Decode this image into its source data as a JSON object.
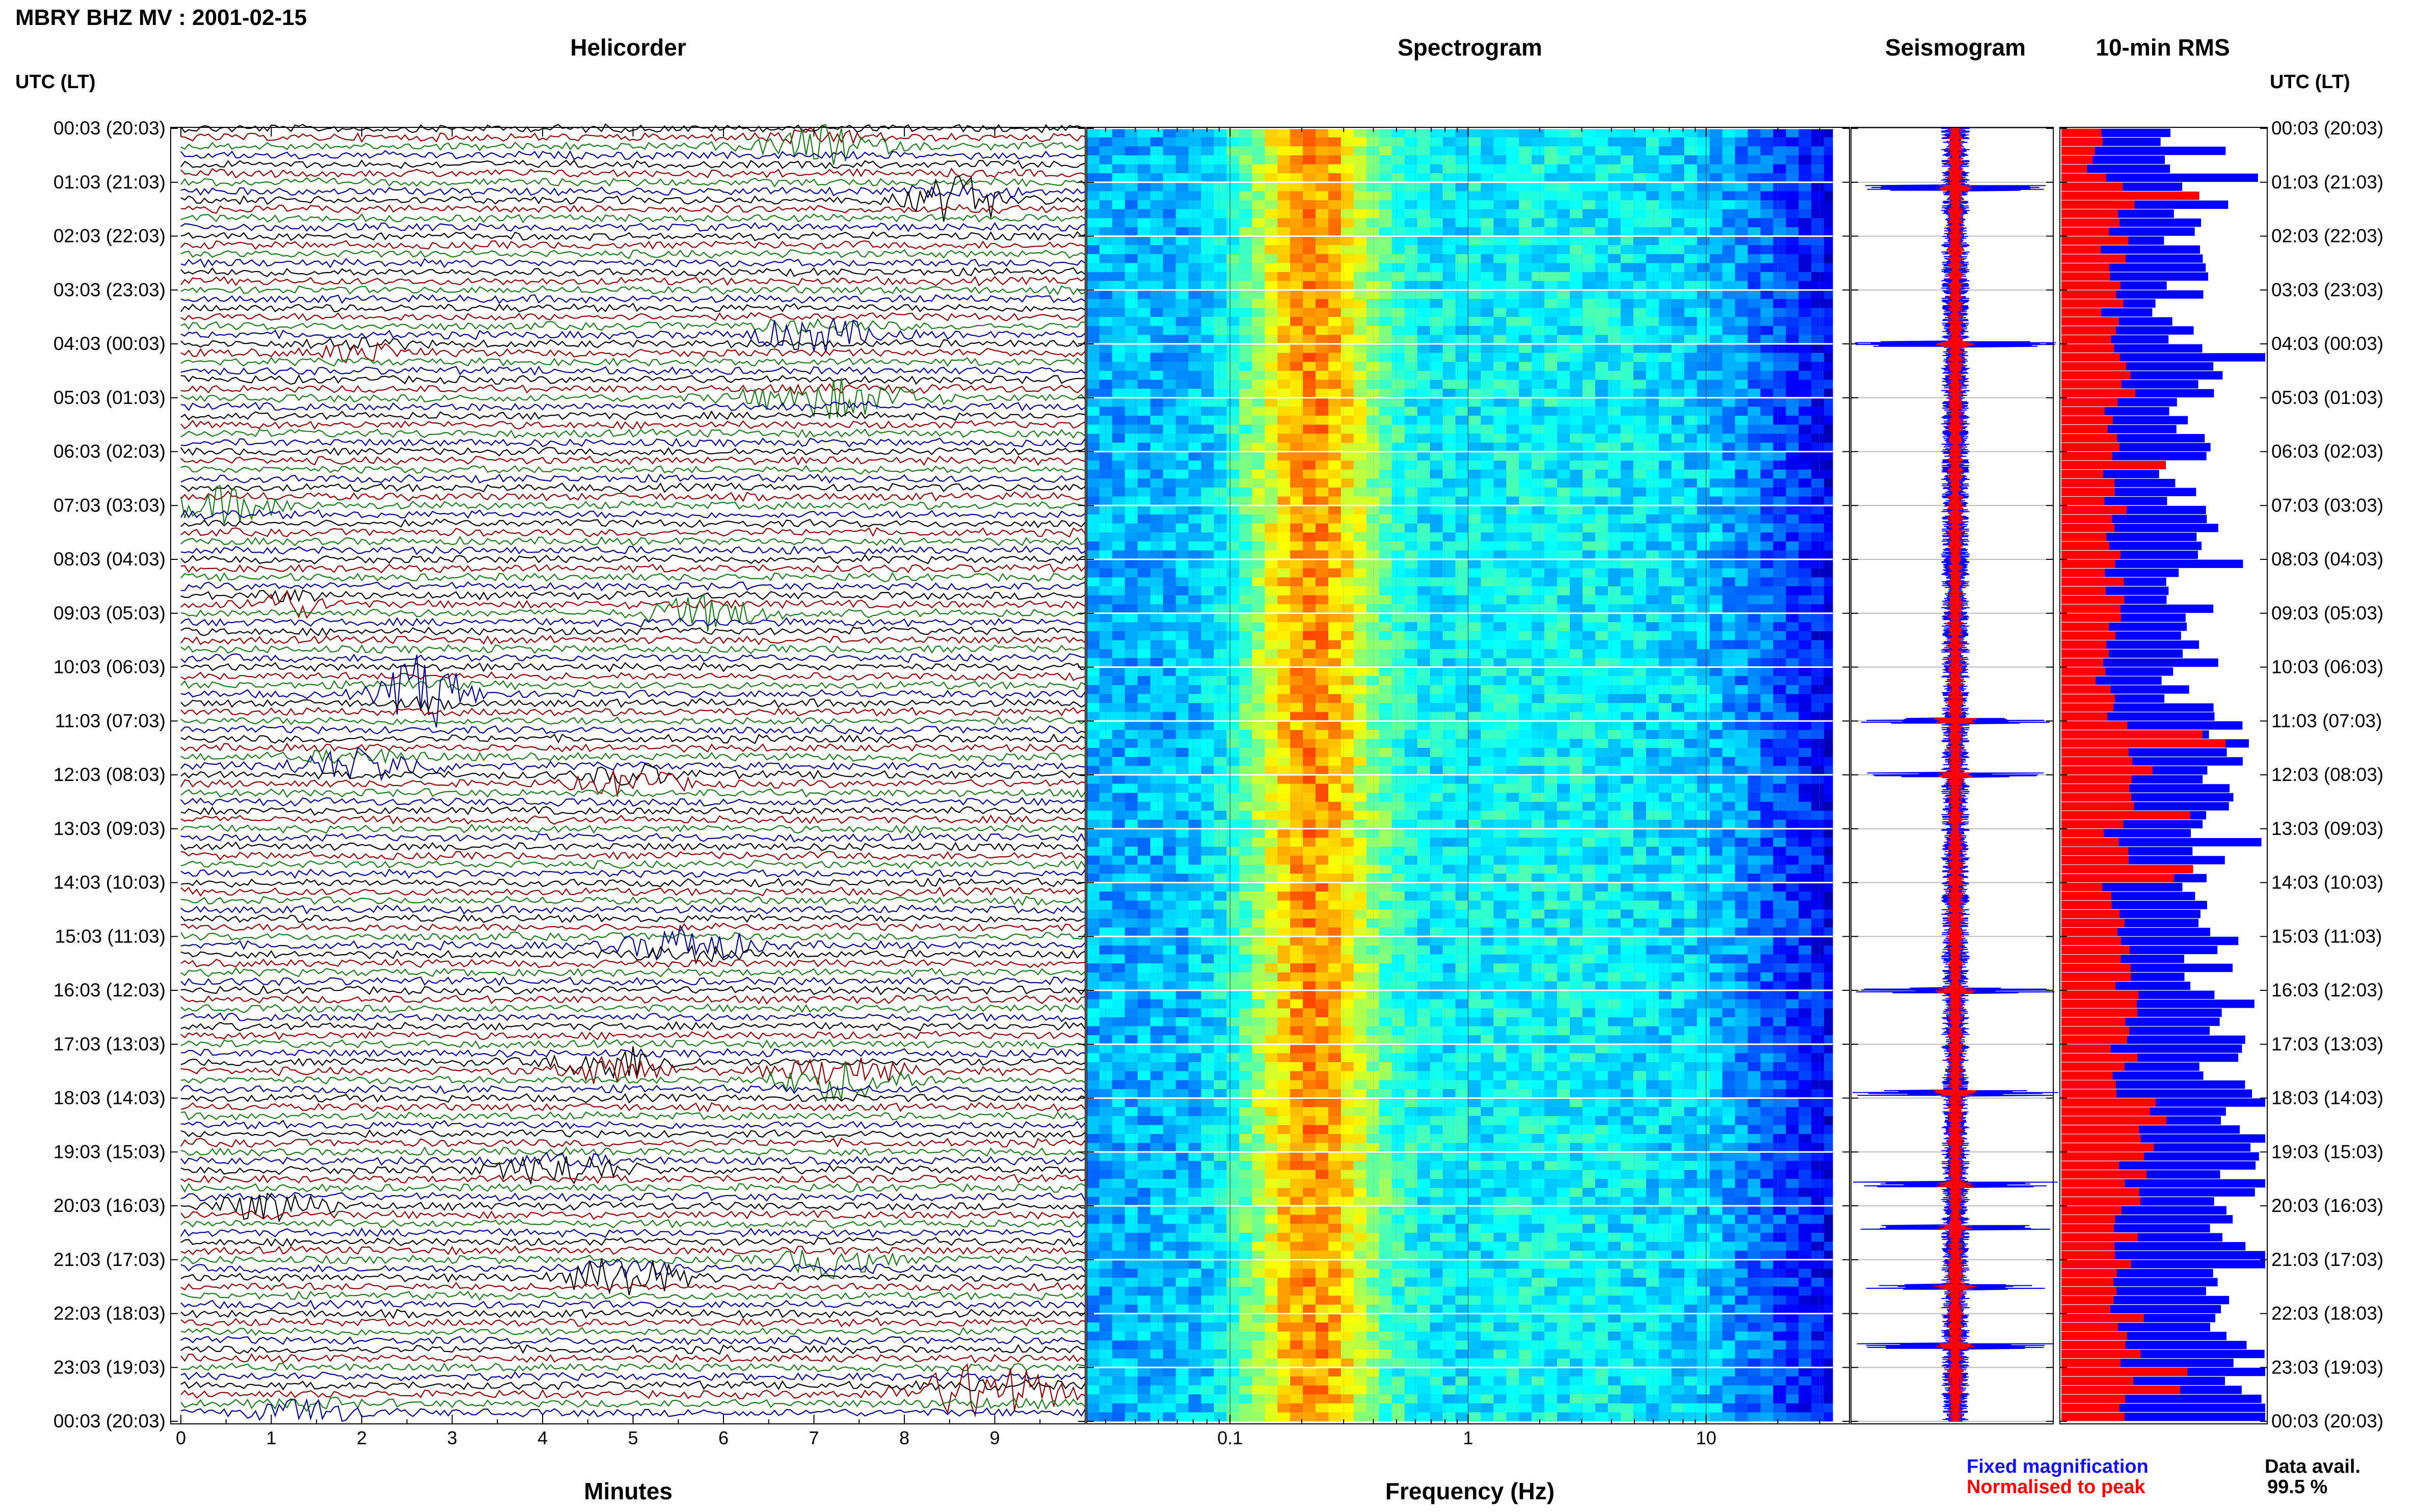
{
  "header": {
    "title": "MBRY BHZ MV : 2001-02-15",
    "utc_left": "UTC (LT)",
    "utc_right": "UTC (LT)"
  },
  "panels": {
    "helicorder": "Helicorder",
    "spectrogram": "Spectrogram",
    "seismogram": "Seismogram",
    "rms": "10-min RMS"
  },
  "legend": {
    "fixed": "Fixed magnification",
    "normalised": "Normalised to peak",
    "fixed_color": "#1010ff",
    "normalised_color": "#ff0000"
  },
  "data_availability": {
    "label": "Data avail.",
    "value": "99.5 %"
  },
  "colors": {
    "trace_cycle": [
      "#000000",
      "#8b0000",
      "#1a7a1a",
      "#00008b"
    ],
    "spectrogram_low": "#00008b",
    "spectrogram_high": "#ff0000",
    "rms_fixed": "#0000ff",
    "rms_normalised": "#ff0000"
  },
  "chart_data": [
    {
      "type": "line",
      "name": "Helicorder",
      "xlabel": "Minutes",
      "x_ticks": [
        "0",
        "1",
        "2",
        "3",
        "4",
        "5",
        "6",
        "7",
        "8",
        "9"
      ],
      "xlim": [
        0,
        10
      ],
      "time_labels": [
        "00:03 (20:03)",
        "01:03 (21:03)",
        "02:03 (22:03)",
        "03:03 (23:03)",
        "04:03 (00:03)",
        "05:03 (01:03)",
        "06:03 (02:03)",
        "07:03 (03:03)",
        "08:03 (04:03)",
        "09:03 (05:03)",
        "10:03 (06:03)",
        "11:03 (07:03)",
        "12:03 (08:03)",
        "13:03 (09:03)",
        "14:03 (10:03)",
        "15:03 (11:03)",
        "16:03 (12:03)",
        "17:03 (13:03)",
        "18:03 (14:03)",
        "19:03 (15:03)",
        "20:03 (16:03)",
        "21:03 (17:03)",
        "22:03 (18:03)",
        "23:03 (19:03)",
        "00:03 (20:03)"
      ],
      "lines_per_hour": 6,
      "events": [
        {
          "hour": 0.3,
          "minute": 7.1,
          "amp": 2.5,
          "dur": 0.8
        },
        {
          "hour": 1.3,
          "minute": 8.6,
          "amp": 3.0,
          "dur": 0.7
        },
        {
          "hour": 3.8,
          "minute": 7.0,
          "amp": 2.2,
          "dur": 0.9
        },
        {
          "hour": 4.1,
          "minute": 2.0,
          "amp": 1.6,
          "dur": 0.6
        },
        {
          "hour": 5.0,
          "minute": 7.2,
          "amp": 2.0,
          "dur": 1.2
        },
        {
          "hour": 7.0,
          "minute": 0.5,
          "amp": 1.8,
          "dur": 0.8
        },
        {
          "hour": 8.8,
          "minute": 1.2,
          "amp": 1.7,
          "dur": 0.6
        },
        {
          "hour": 9.0,
          "minute": 5.8,
          "amp": 1.8,
          "dur": 0.8
        },
        {
          "hour": 10.5,
          "minute": 2.7,
          "amp": 4.0,
          "dur": 0.6
        },
        {
          "hour": 11.8,
          "minute": 2.0,
          "amp": 2.0,
          "dur": 1.0
        },
        {
          "hour": 12.1,
          "minute": 5.0,
          "amp": 2.2,
          "dur": 0.7
        },
        {
          "hour": 15.2,
          "minute": 5.6,
          "amp": 2.4,
          "dur": 0.9
        },
        {
          "hour": 17.4,
          "minute": 4.8,
          "amp": 2.8,
          "dur": 0.8
        },
        {
          "hour": 17.6,
          "minute": 7.3,
          "amp": 3.2,
          "dur": 0.9
        },
        {
          "hour": 19.3,
          "minute": 4.2,
          "amp": 2.0,
          "dur": 0.9
        },
        {
          "hour": 20.0,
          "minute": 1.0,
          "amp": 1.6,
          "dur": 0.8
        },
        {
          "hour": 21.3,
          "minute": 4.9,
          "amp": 2.8,
          "dur": 0.8
        },
        {
          "hour": 21.0,
          "minute": 7.2,
          "amp": 1.8,
          "dur": 0.7
        },
        {
          "hour": 23.5,
          "minute": 8.9,
          "amp": 3.2,
          "dur": 1.1
        },
        {
          "hour": 23.8,
          "minute": 1.4,
          "amp": 1.6,
          "dur": 0.7
        }
      ]
    },
    {
      "type": "heatmap",
      "name": "Spectrogram",
      "xlabel": "Frequency (Hz)",
      "x_scale": "log",
      "xlim": [
        0.025,
        40
      ],
      "x_tick_labels": [
        "0.1",
        "1",
        "10"
      ],
      "x_ticks": [
        0.1,
        1,
        10
      ],
      "peak_frequency_hz": 0.22,
      "data_cutoff_hz": 34
    },
    {
      "type": "line",
      "name": "Seismogram",
      "series": [
        {
          "name": "Fixed magnification",
          "color": "#0000ff"
        },
        {
          "name": "Normalised to peak",
          "color": "#ff0000"
        }
      ],
      "spike_hours": [
        1.1,
        4.0,
        11.0,
        12.0,
        16.0,
        17.9,
        19.6,
        20.4,
        21.5,
        22.6
      ]
    },
    {
      "type": "bar",
      "name": "10-min RMS",
      "orientation": "horizontal",
      "series": [
        {
          "name": "Fixed magnification",
          "color": "#0000ff"
        },
        {
          "name": "Normalised to peak",
          "color": "#ff0000"
        }
      ],
      "bins_per_hour": 6,
      "fixed_hourly_mean": [
        0.55,
        0.68,
        0.62,
        0.58,
        0.72,
        0.6,
        0.58,
        0.64,
        0.62,
        0.66,
        0.62,
        0.78,
        0.72,
        0.68,
        0.64,
        0.74,
        0.78,
        0.8,
        0.88,
        0.84,
        0.8,
        0.84,
        0.86,
        0.9
      ],
      "normalised_hourly_mean": [
        0.2,
        0.28,
        0.26,
        0.24,
        0.3,
        0.22,
        0.22,
        0.24,
        0.24,
        0.26,
        0.24,
        0.38,
        0.3,
        0.26,
        0.26,
        0.3,
        0.34,
        0.3,
        0.44,
        0.34,
        0.3,
        0.32,
        0.34,
        0.3
      ]
    }
  ]
}
